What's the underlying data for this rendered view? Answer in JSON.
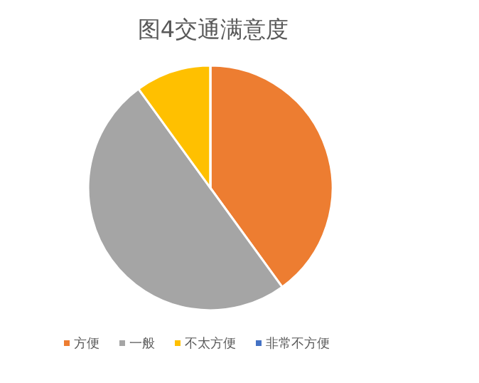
{
  "chart_data": {
    "type": "pie",
    "title": "图4交通满意度",
    "categories": [
      "方便",
      "一般",
      "不太方便",
      "非常不方便"
    ],
    "values": [
      40,
      50,
      10,
      0
    ],
    "colors": [
      "#ed7d31",
      "#a5a5a5",
      "#ffc000",
      "#4472c4"
    ],
    "legend": "bottom"
  }
}
